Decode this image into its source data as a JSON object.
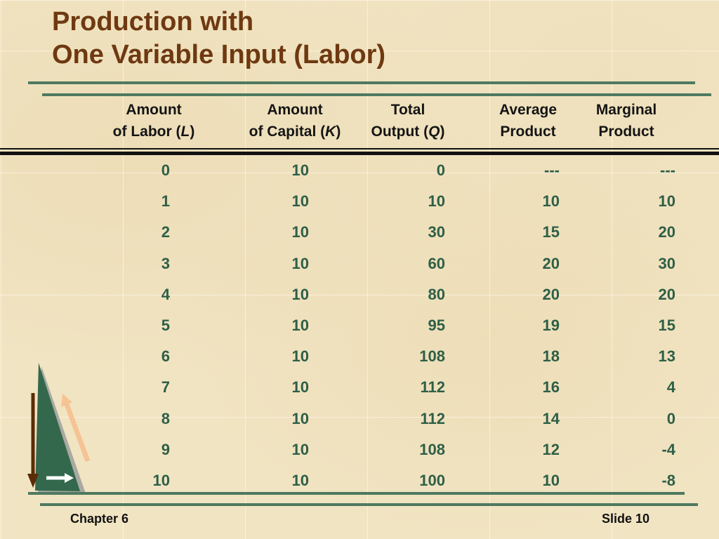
{
  "slide": {
    "title": {
      "line1": "Production with",
      "line2": "One Variable Input (Labor)"
    },
    "footer": {
      "left": "Chapter 6",
      "right": "Slide 10"
    }
  },
  "colors": {
    "background": "#f1e4c2",
    "title_brown": "#6e3911",
    "rule_green": "#4e7a60",
    "table_text_green": "#2d5f47",
    "header_black": "#141414",
    "triangle_green": "#33684d",
    "triangle_shadow": "#a9a9a2",
    "arrow_brown": "#5b2c07",
    "arrow_peach": "#f6c395",
    "arrow_white": "#ffffff"
  },
  "table": {
    "headers": [
      {
        "line1": "Amount",
        "line2_pre": "of Labor (",
        "line2_var": "L",
        "line2_post": ")"
      },
      {
        "line1": "Amount",
        "line2_pre": "of Capital (",
        "line2_var": "K",
        "line2_post": ")"
      },
      {
        "line1": "Total",
        "line2_pre": "Output (",
        "line2_var": "Q",
        "line2_post": ")"
      },
      {
        "line1": "Average",
        "line2_pre": "Product",
        "line2_var": "",
        "line2_post": ""
      },
      {
        "line1": "Marginal",
        "line2_pre": "Product",
        "line2_var": "",
        "line2_post": ""
      }
    ],
    "rows": [
      [
        "0",
        "10",
        "0",
        "---",
        "---"
      ],
      [
        "1",
        "10",
        "10",
        "10",
        "10"
      ],
      [
        "2",
        "10",
        "30",
        "15",
        "20"
      ],
      [
        "3",
        "10",
        "60",
        "20",
        "30"
      ],
      [
        "4",
        "10",
        "80",
        "20",
        "20"
      ],
      [
        "5",
        "10",
        "95",
        "19",
        "15"
      ],
      [
        "6",
        "10",
        "108",
        "18",
        "13"
      ],
      [
        "7",
        "10",
        "112",
        "16",
        "4"
      ],
      [
        "8",
        "10",
        "112",
        "14",
        "0"
      ],
      [
        "9",
        "10",
        "108",
        "12",
        "-4"
      ],
      [
        "10",
        "10",
        "100",
        "10",
        "-8"
      ]
    ]
  },
  "graphic": {
    "icons": [
      "down-arrow-icon",
      "up-arrow-icon",
      "right-arrow-icon"
    ]
  }
}
